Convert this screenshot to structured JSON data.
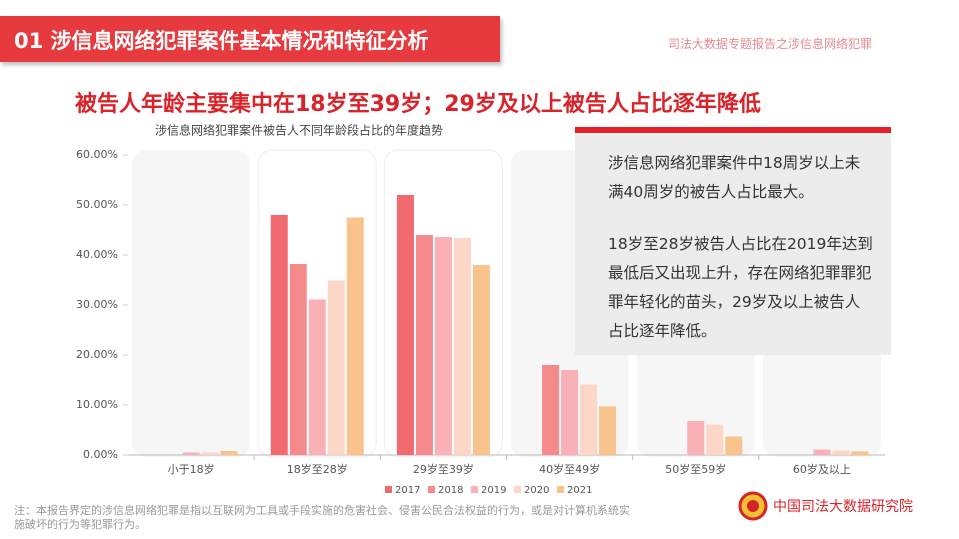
{
  "header": {
    "title": "01  涉信息网络犯罪案件基本情况和特征分析",
    "subtitle": "司法大数据专题报告之涉信息网络犯罪"
  },
  "headline": "被告人年龄主要集中在18岁至39岁；29岁及以上被告人占比逐年降低",
  "chart_data": {
    "type": "bar",
    "title": "涉信息网络犯罪案件被告人不同年龄段占比的年度趋势",
    "categories": [
      "小于18岁",
      "18岁至28岁",
      "29岁至39岁",
      "40岁至49岁",
      "50岁至59岁",
      "60岁及以上"
    ],
    "series": [
      {
        "name": "2017",
        "color": "#f06a70",
        "values": [
          null,
          48.0,
          52.0,
          null,
          null,
          null
        ]
      },
      {
        "name": "2018",
        "color": "#f58a8c",
        "values": [
          null,
          38.2,
          44.0,
          18.0,
          null,
          null
        ]
      },
      {
        "name": "2019",
        "color": "#f9b0b6",
        "values": [
          0.5,
          31.1,
          43.6,
          17.0,
          6.8,
          1.1
        ]
      },
      {
        "name": "2020",
        "color": "#fcd6c6",
        "values": [
          0.5,
          34.9,
          43.4,
          14.1,
          6.1,
          0.9
        ]
      },
      {
        "name": "2021",
        "color": "#f9c38e",
        "values": [
          0.8,
          47.5,
          38.0,
          9.7,
          3.7,
          0.7
        ]
      }
    ],
    "ylim": [
      0,
      60
    ],
    "yticks": [
      {
        "value": 0,
        "label": "0.00%"
      },
      {
        "value": 10,
        "label": "10.00%"
      },
      {
        "value": 20,
        "label": "20.00%"
      },
      {
        "value": 30,
        "label": "30.00%"
      },
      {
        "value": 40,
        "label": "40.00%"
      },
      {
        "value": 50,
        "label": "50.00%"
      },
      {
        "value": 60,
        "label": "60.00%"
      }
    ],
    "legend": "bottom"
  },
  "callout": [
    "涉信息网络犯罪案件中18周岁以上未满40周岁的被告人占比最大。",
    "18岁至28岁被告人占比在2019年达到最低后又出现上升，存在网络犯罪罪犯罪年轻化的苗头，29岁及以上被告人占比逐年降低。"
  ],
  "note": "注：本报告界定的涉信息网络犯罪是指以互联网为工具或手段实施的危害社会、侵害公民合法权益的行为，或是对计算机系统实施破坏的行为等犯罪行为。",
  "institute": "中国司法大数据研究院"
}
